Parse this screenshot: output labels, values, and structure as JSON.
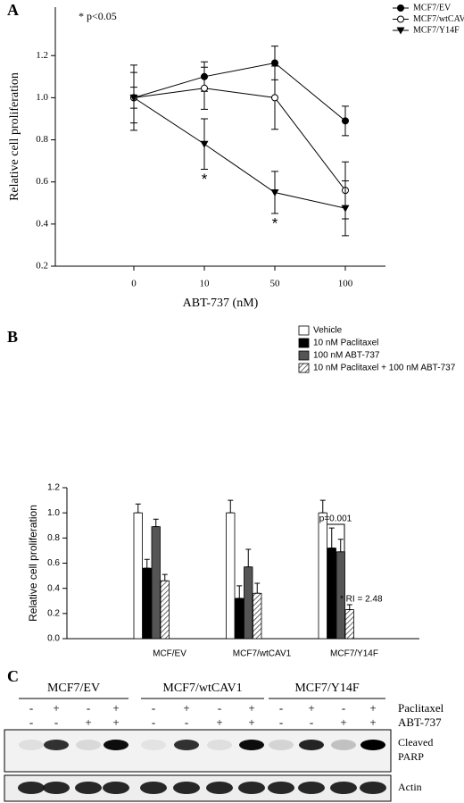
{
  "chart_data": [
    {
      "type": "line",
      "panel_label": "A",
      "note": "* p<0.05",
      "xlabel": "ABT-737 (nM)",
      "ylabel": "Relative cell proliferation",
      "categories": [
        "0",
        "10",
        "50",
        "100"
      ],
      "ylim": [
        0.2,
        1.43
      ],
      "yticks": [
        0.2,
        0.4,
        0.6,
        0.8,
        {
          "value": 1,
          "label": "1.0"
        },
        1.2
      ],
      "series": [
        {
          "name": "MCF7/EV",
          "color": "#000000",
          "marker": "filled-circle",
          "values": [
            1.0,
            1.1,
            1.165,
            0.89
          ],
          "errors": [
            0.155,
            0.07,
            0.08,
            0.07
          ]
        },
        {
          "name": "MCF7/wtCAV1",
          "color": "#000000",
          "marker": "open-circle",
          "values": [
            1.0,
            1.045,
            1.0,
            0.56
          ],
          "errors": [
            0.05,
            0.1,
            0.15,
            0.135
          ]
        },
        {
          "name": "MCF7/Y14F",
          "color": "#000000",
          "marker": "triangle-down",
          "values": [
            1.0,
            0.78,
            0.55,
            0.475
          ],
          "errors": [
            0.12,
            0.12,
            0.1,
            0.13
          ],
          "significance": [
            null,
            "*",
            "*",
            null
          ]
        }
      ],
      "legend": "upper right"
    },
    {
      "type": "bar",
      "panel_label": "B",
      "ylabel": "Relative cell proliferation",
      "categories": [
        "MCF/EV",
        "MCF7/wtCAV1",
        "MCF7/Y14F"
      ],
      "ylim": [
        0,
        1.2
      ],
      "yticks": [
        {
          "value": 0,
          "label": "0.0"
        },
        0.2,
        0.4,
        0.6,
        0.8,
        {
          "value": 1,
          "label": "1.0"
        },
        1.2
      ],
      "series": [
        {
          "name": "Vehicle",
          "color": "#ffffff",
          "values": [
            1.0,
            1.0,
            1.0
          ],
          "errors": [
            0.07,
            0.1,
            0.1
          ]
        },
        {
          "name": "10 nM Paclitaxel",
          "color": "#000000",
          "values": [
            0.56,
            0.32,
            0.72
          ],
          "errors": [
            0.07,
            0.1,
            0.16
          ]
        },
        {
          "name": "100 nM ABT-737",
          "color": "#555555",
          "values": [
            0.89,
            0.57,
            0.69
          ],
          "errors": [
            0.06,
            0.14,
            0.1
          ]
        },
        {
          "name": "10 nM Paclitaxel + 100 nM ABT-737",
          "color": "hatch",
          "values": [
            0.46,
            0.36,
            0.23
          ],
          "errors": [
            0.05,
            0.08,
            0.04
          ]
        }
      ],
      "p_label": "p=0.001",
      "ri_label": "* RI = 2.48",
      "legend": "upper right"
    }
  ],
  "blot": {
    "panel_label": "C",
    "groups": [
      "MCF7/EV",
      "MCF7/wtCAV1",
      "MCF7/Y14F"
    ],
    "rows": [
      {
        "label": "Paclitaxel",
        "signs": [
          "-",
          "+",
          "-",
          "+",
          "-",
          "+",
          "-",
          "+",
          "-",
          "+",
          "-",
          "+"
        ]
      },
      {
        "label": "ABT-737",
        "signs": [
          "-",
          "-",
          "+",
          "+",
          "-",
          "-",
          "+",
          "+",
          "-",
          "-",
          "+",
          "+"
        ]
      }
    ],
    "cleaved_label": [
      "Cleaved",
      "PARP"
    ],
    "actin_label": "Actin"
  }
}
